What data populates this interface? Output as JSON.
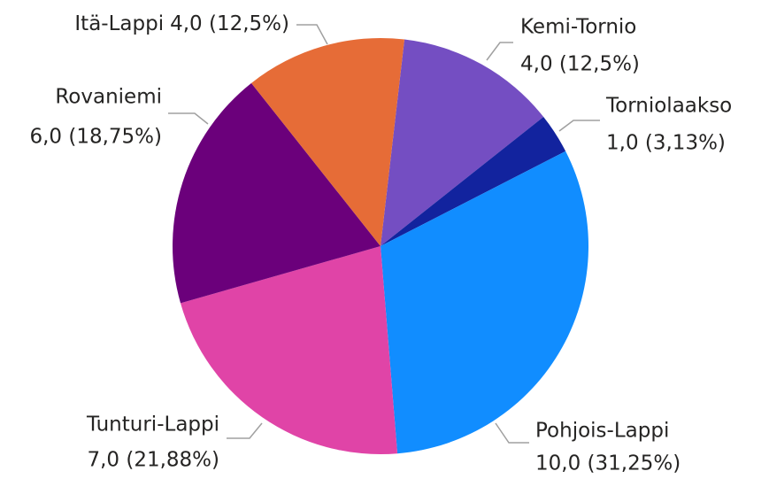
{
  "chart_data": {
    "type": "pie",
    "categories": [
      "Kemi-Tornio",
      "Torniolaakso",
      "Pohjois-Lappi",
      "Tunturi-Lappi",
      "Rovaniemi",
      "Itä-Lappi"
    ],
    "values": [
      4,
      1,
      10,
      7,
      6,
      4
    ],
    "value_labels": [
      "4,0 (12,5%)",
      "1,0 (3,13%)",
      "10,0 (31,25%)",
      "7,0 (21,88%)",
      "6,0 (18,75%)",
      "4,0 (12,5%)"
    ],
    "colors": [
      "#744ec2",
      "#12239e",
      "#118dff",
      "#e044a7",
      "#6b007b",
      "#e66c37"
    ]
  }
}
